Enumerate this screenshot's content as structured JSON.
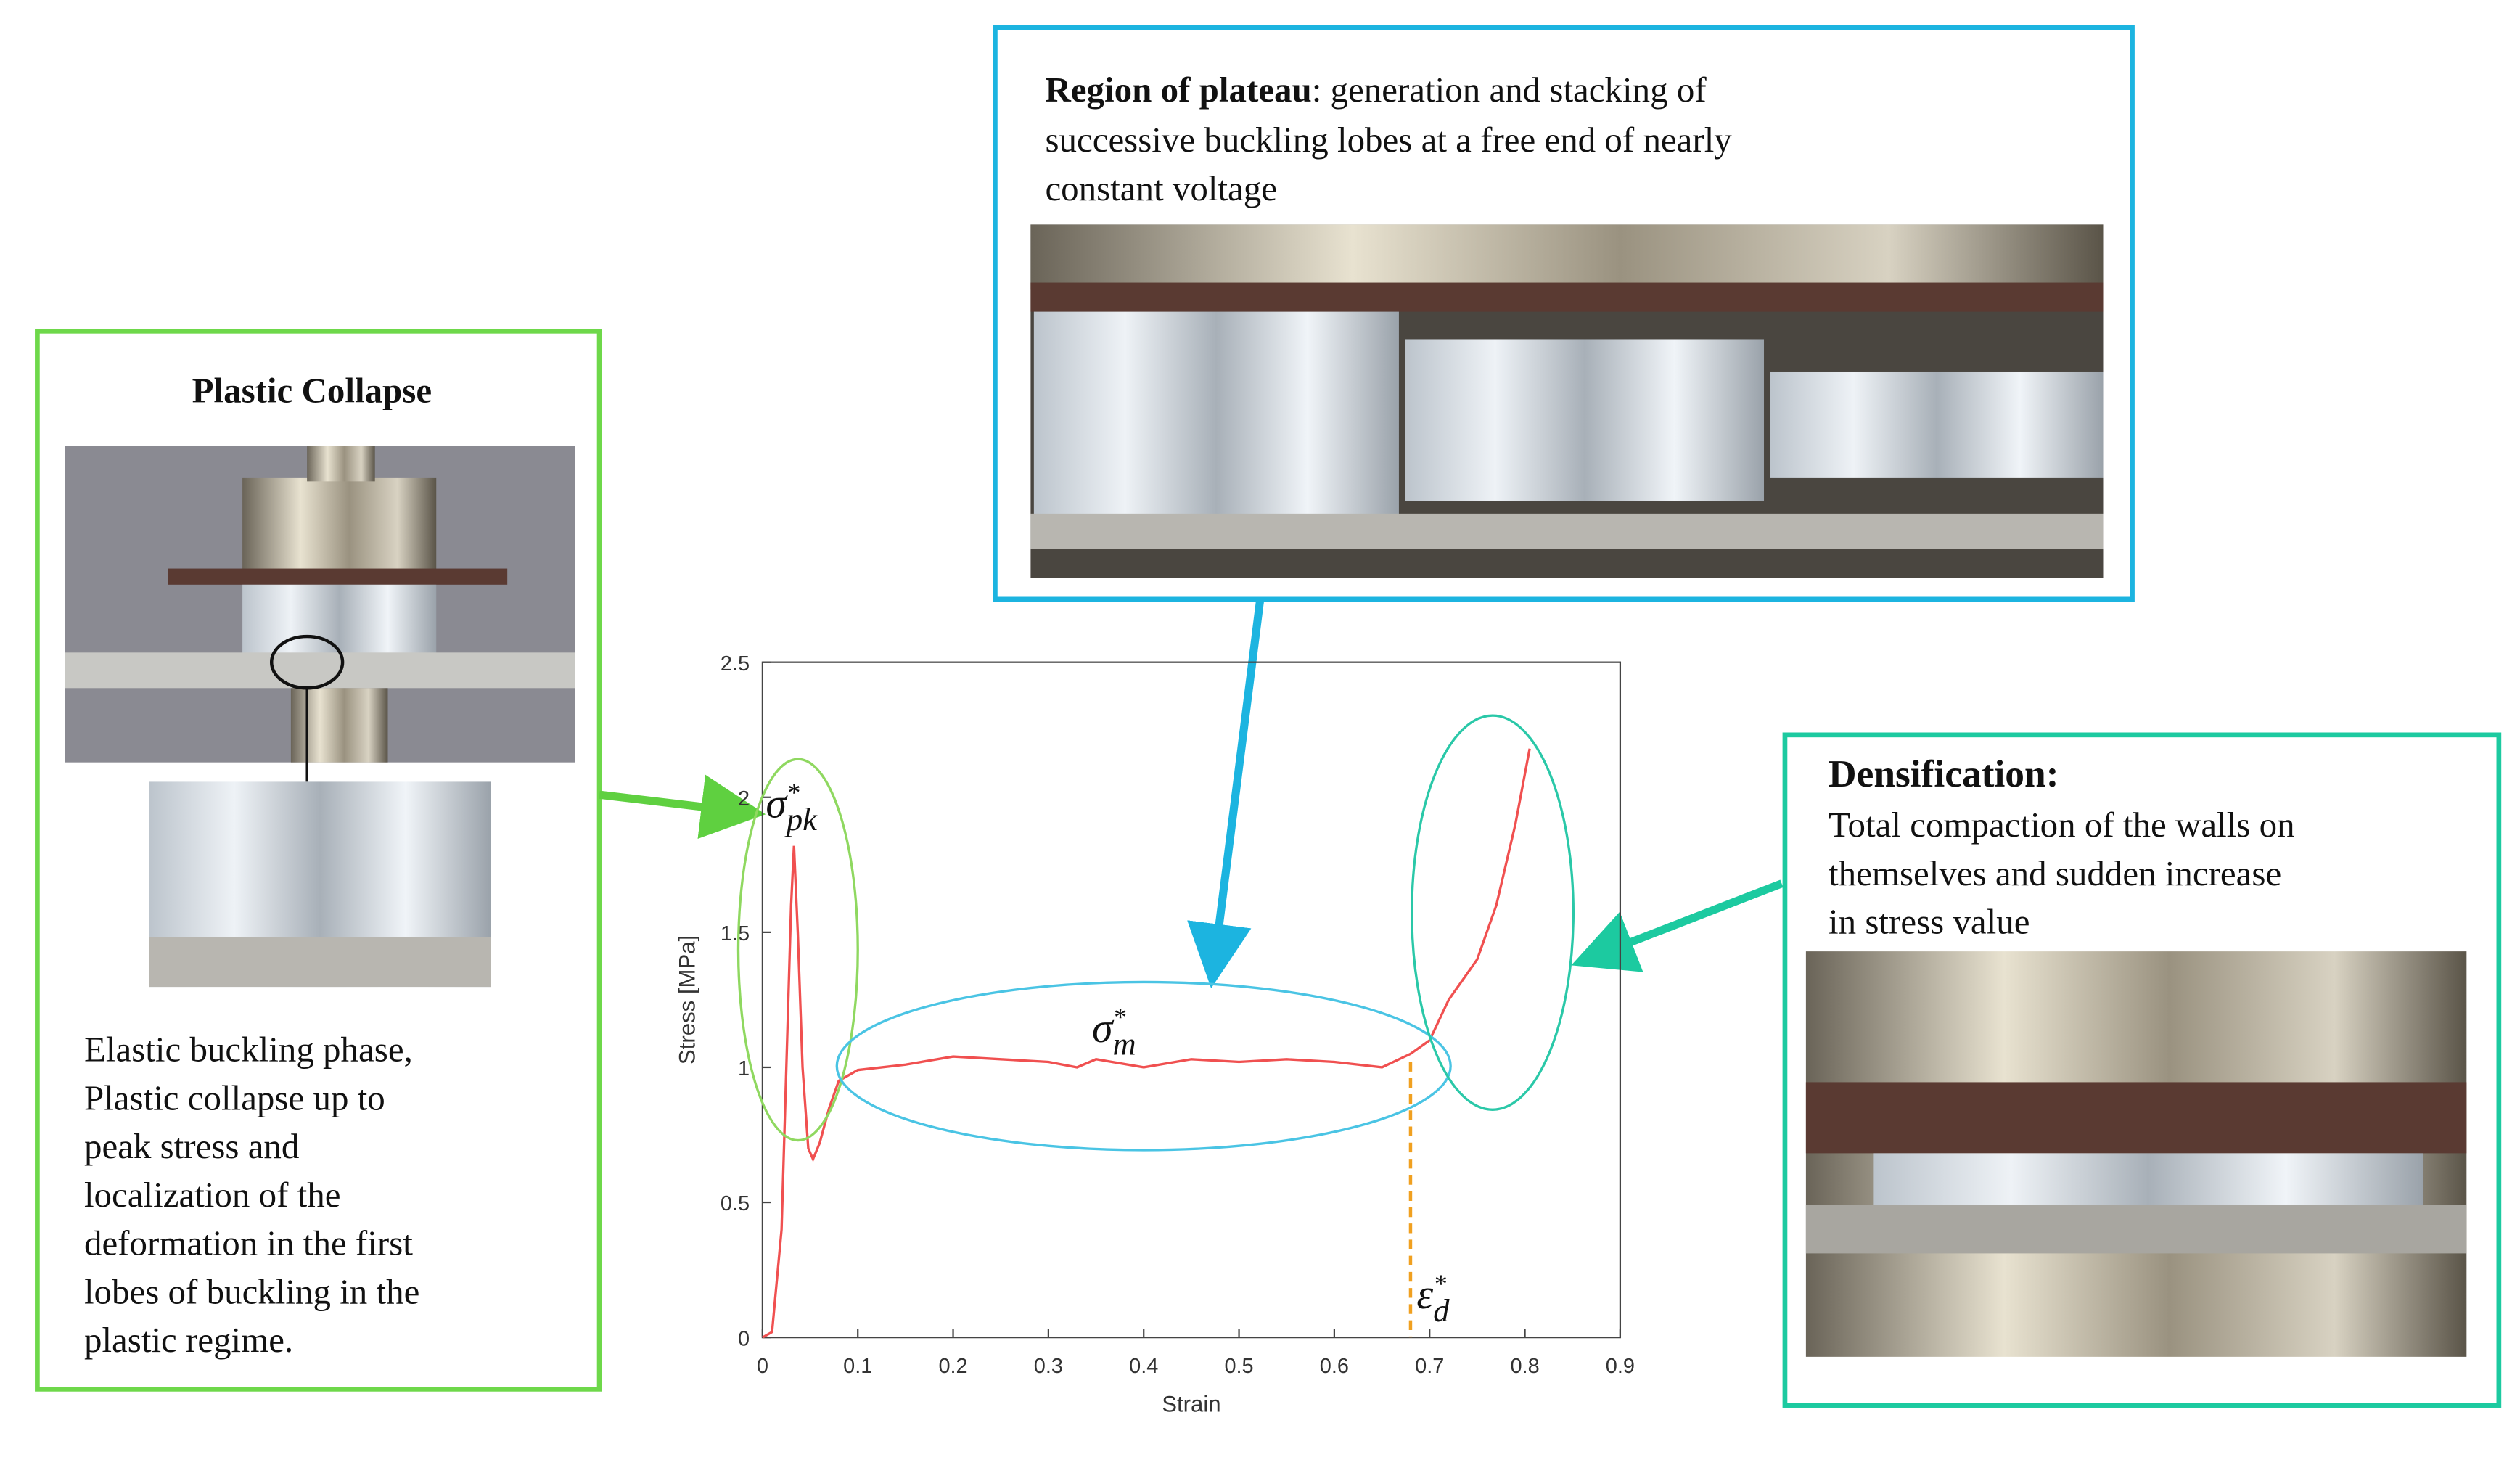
{
  "collapse": {
    "title": "Plastic Collapse",
    "lines": [
      "Elastic buckling phase,",
      "Plastic collapse up to",
      "peak stress and",
      "localization of the",
      "deformation in the first",
      "lobes of buckling in the",
      "plastic regime."
    ]
  },
  "plateau": {
    "title": "Region of plateau",
    "lines": [
      ":  generation and stacking of",
      "successive buckling lobes at a free end of nearly",
      "constant voltage"
    ]
  },
  "densification": {
    "title": "Densification:",
    "lines": [
      "Total compaction of the walls on",
      "themselves and sudden increase",
      "in stress value"
    ]
  },
  "annotations": {
    "peak": {
      "symbol": "σ",
      "sup": "*",
      "sub": "pk"
    },
    "mean": {
      "symbol": "σ",
      "sup": "*",
      "sub": "m"
    },
    "densification": {
      "symbol": "ε",
      "sup": "*",
      "sub": "d"
    }
  },
  "chart": {
    "type": "line",
    "xlabel": "Strain",
    "ylabel": "Stress [MPa]",
    "color": "#f05050",
    "x": [
      0,
      0.01,
      0.02,
      0.025,
      0.03,
      0.033,
      0.037,
      0.042,
      0.048,
      0.053,
      0.06,
      0.07,
      0.08,
      0.1,
      0.15,
      0.2,
      0.25,
      0.3,
      0.33,
      0.35,
      0.4,
      0.45,
      0.5,
      0.55,
      0.6,
      0.65,
      0.68,
      0.7,
      0.72,
      0.75,
      0.77,
      0.79,
      0.805
    ],
    "values": [
      0,
      0.02,
      0.4,
      1.0,
      1.6,
      1.82,
      1.5,
      1.0,
      0.7,
      0.66,
      0.72,
      0.85,
      0.95,
      0.99,
      1.01,
      1.04,
      1.03,
      1.02,
      1.0,
      1.03,
      1.0,
      1.03,
      1.02,
      1.03,
      1.02,
      1.0,
      1.05,
      1.1,
      1.25,
      1.4,
      1.6,
      1.9,
      2.18
    ],
    "densification_strain": 0.68,
    "densification_stress": 1.02,
    "xlim": [
      0,
      0.9
    ],
    "ylim": [
      0,
      2.5
    ],
    "xticks": [
      0,
      0.1,
      0.2,
      0.3,
      0.4,
      0.5,
      0.6,
      0.7,
      0.8,
      0.9
    ],
    "yticks": [
      0,
      0.5,
      1,
      1.5,
      2,
      2.5
    ]
  }
}
